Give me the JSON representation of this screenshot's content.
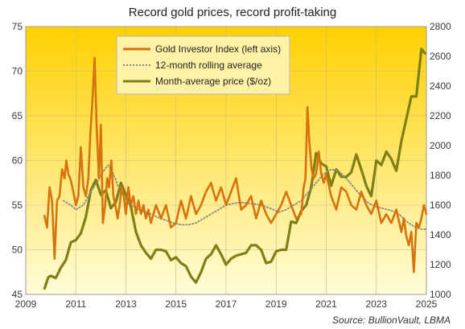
{
  "chart_data": {
    "type": "line",
    "title": "Record gold prices, record profit-taking",
    "source": "Source: BullionVault, LBMA",
    "x_range": [
      2009,
      2025
    ],
    "x_ticks": [
      "2009",
      "2011",
      "2013",
      "2015",
      "2017",
      "2019",
      "2021",
      "2023",
      "2025"
    ],
    "y_left": {
      "range": [
        45,
        75
      ],
      "ticks": [
        "45",
        "50",
        "55",
        "60",
        "65",
        "70",
        "75"
      ]
    },
    "y_right": {
      "range": [
        1000,
        2800
      ],
      "ticks": [
        "1000",
        "1200",
        "1400",
        "1600",
        "1800",
        "2000",
        "2200",
        "2400",
        "2600",
        "2800"
      ]
    },
    "grid": true,
    "legend_placement": "top-center",
    "colors": {
      "bg_top": "#ffd000",
      "bg_bottom": "#fffcd8",
      "gii": "#d6730f",
      "avg": "#8a8a8a",
      "price": "#7f7f16",
      "legend_bg": "#fff2a6"
    },
    "series": [
      {
        "name": "Gold Investor Index (left axis)",
        "axis": "left",
        "style": "solid",
        "x": [
          2009.75,
          2009.85,
          2009.95,
          2010.05,
          2010.15,
          2010.25,
          2010.35,
          2010.45,
          2010.55,
          2010.62,
          2010.7,
          2010.8,
          2010.9,
          2011.0,
          2011.1,
          2011.2,
          2011.3,
          2011.4,
          2011.5,
          2011.58,
          2011.67,
          2011.75,
          2011.83,
          2011.92,
          2012.0,
          2012.08,
          2012.17,
          2012.25,
          2012.33,
          2012.42,
          2012.5,
          2012.58,
          2012.67,
          2012.75,
          2012.83,
          2012.92,
          2013.0,
          2013.1,
          2013.2,
          2013.3,
          2013.4,
          2013.5,
          2013.6,
          2013.7,
          2013.8,
          2013.9,
          2014.0,
          2014.2,
          2014.4,
          2014.6,
          2014.8,
          2015.0,
          2015.2,
          2015.4,
          2015.6,
          2015.8,
          2016.0,
          2016.2,
          2016.4,
          2016.6,
          2016.8,
          2017.0,
          2017.2,
          2017.4,
          2017.6,
          2017.8,
          2018.0,
          2018.2,
          2018.4,
          2018.6,
          2018.8,
          2019.0,
          2019.2,
          2019.4,
          2019.6,
          2019.8,
          2020.0,
          2020.1,
          2020.17,
          2020.25,
          2020.33,
          2020.42,
          2020.5,
          2020.6,
          2020.7,
          2020.8,
          2020.9,
          2021.0,
          2021.2,
          2021.4,
          2021.6,
          2021.8,
          2022.0,
          2022.2,
          2022.4,
          2022.6,
          2022.8,
          2023.0,
          2023.2,
          2023.4,
          2023.6,
          2023.8,
          2024.0,
          2024.1,
          2024.2,
          2024.3,
          2024.4,
          2024.5,
          2024.6,
          2024.7,
          2024.8,
          2024.9,
          2025.0
        ],
        "values": [
          53.8,
          52.5,
          57.0,
          55.5,
          49.0,
          55.5,
          56.0,
          59.0,
          58.0,
          60.0,
          58.5,
          57.8,
          56.5,
          55.0,
          56.0,
          61.5,
          57.0,
          56.0,
          58.0,
          63.0,
          67.0,
          71.5,
          64.0,
          58.0,
          64.0,
          53.0,
          55.0,
          58.0,
          57.0,
          60.0,
          56.0,
          55.0,
          53.5,
          55.0,
          57.0,
          56.0,
          54.0,
          57.0,
          55.0,
          56.0,
          54.0,
          55.5,
          54.0,
          55.0,
          53.5,
          54.5,
          53.0,
          55.0,
          53.5,
          55.0,
          52.5,
          53.0,
          55.5,
          53.5,
          56.0,
          54.0,
          55.0,
          56.5,
          57.5,
          55.5,
          57.0,
          55.0,
          56.5,
          58.0,
          54.5,
          55.0,
          56.0,
          53.5,
          55.5,
          54.0,
          53.0,
          54.0,
          55.0,
          56.5,
          55.0,
          53.5,
          54.0,
          57.0,
          58.0,
          66.0,
          62.0,
          59.0,
          58.0,
          58.5,
          61.0,
          58.5,
          57.5,
          58.5,
          56.0,
          54.5,
          57.0,
          56.5,
          55.0,
          54.5,
          56.5,
          55.0,
          54.0,
          55.5,
          53.0,
          54.0,
          53.0,
          54.5,
          52.0,
          53.5,
          51.5,
          50.5,
          52.0,
          47.5,
          53.0,
          52.5,
          53.5,
          55.0,
          54.0
        ]
      },
      {
        "name": "12-month rolling average",
        "axis": "left",
        "style": "dotted",
        "x": [
          2010.5,
          2010.8,
          2011.0,
          2011.3,
          2011.6,
          2011.9,
          2012.1,
          2012.3,
          2012.5,
          2012.7,
          2012.9,
          2013.2,
          2013.5,
          2013.8,
          2014.0,
          2014.3,
          2014.6,
          2014.9,
          2015.2,
          2015.5,
          2015.8,
          2016.1,
          2016.4,
          2016.7,
          2017.0,
          2017.3,
          2017.6,
          2017.9,
          2018.2,
          2018.5,
          2018.8,
          2019.1,
          2019.4,
          2019.7,
          2020.0,
          2020.3,
          2020.6,
          2020.9,
          2021.2,
          2021.5,
          2021.8,
          2022.1,
          2022.4,
          2022.7,
          2023.0,
          2023.3,
          2023.6,
          2023.9,
          2024.2,
          2024.5,
          2024.8,
          2025.0
        ],
        "values": [
          55.5,
          55.0,
          54.5,
          55.0,
          56.5,
          57.8,
          58.8,
          59.5,
          58.5,
          57.0,
          56.0,
          55.0,
          54.5,
          54.2,
          54.0,
          53.6,
          53.3,
          53.0,
          52.8,
          52.8,
          53.0,
          53.5,
          54.0,
          54.5,
          55.0,
          55.2,
          55.3,
          55.2,
          55.1,
          54.9,
          54.6,
          54.2,
          54.5,
          55.0,
          55.5,
          56.5,
          57.5,
          58.5,
          59.0,
          58.8,
          58.0,
          57.0,
          56.0,
          55.2,
          54.8,
          54.6,
          54.4,
          54.0,
          53.2,
          52.6,
          52.3,
          52.3
        ]
      },
      {
        "name": "Month-average price ($/oz)",
        "axis": "right",
        "style": "solid",
        "x": [
          2009.75,
          2009.9,
          2010.0,
          2010.2,
          2010.4,
          2010.6,
          2010.8,
          2011.0,
          2011.2,
          2011.4,
          2011.6,
          2011.8,
          2012.0,
          2012.2,
          2012.4,
          2012.6,
          2012.8,
          2013.0,
          2013.2,
          2013.4,
          2013.6,
          2013.8,
          2014.0,
          2014.2,
          2014.4,
          2014.6,
          2014.8,
          2015.0,
          2015.2,
          2015.4,
          2015.6,
          2015.8,
          2016.0,
          2016.2,
          2016.4,
          2016.6,
          2016.8,
          2017.0,
          2017.2,
          2017.4,
          2017.6,
          2017.8,
          2018.0,
          2018.2,
          2018.4,
          2018.6,
          2018.8,
          2019.0,
          2019.2,
          2019.4,
          2019.6,
          2019.8,
          2020.0,
          2020.2,
          2020.4,
          2020.6,
          2020.8,
          2021.0,
          2021.2,
          2021.4,
          2021.6,
          2021.8,
          2022.0,
          2022.2,
          2022.4,
          2022.6,
          2022.8,
          2023.0,
          2023.2,
          2023.4,
          2023.6,
          2023.8,
          2024.0,
          2024.2,
          2024.4,
          2024.6,
          2024.8,
          2024.95
        ],
        "values": [
          1040,
          1115,
          1125,
          1110,
          1180,
          1230,
          1350,
          1365,
          1410,
          1520,
          1700,
          1770,
          1670,
          1700,
          1580,
          1620,
          1750,
          1670,
          1590,
          1420,
          1330,
          1280,
          1240,
          1300,
          1300,
          1290,
          1230,
          1250,
          1210,
          1190,
          1120,
          1080,
          1150,
          1240,
          1270,
          1330,
          1270,
          1200,
          1240,
          1260,
          1270,
          1280,
          1330,
          1330,
          1300,
          1210,
          1220,
          1290,
          1300,
          1300,
          1490,
          1480,
          1560,
          1600,
          1720,
          1950,
          1880,
          1860,
          1730,
          1840,
          1790,
          1790,
          1820,
          1940,
          1840,
          1730,
          1660,
          1900,
          1870,
          1960,
          1910,
          1830,
          2030,
          2180,
          2330,
          2330,
          2650,
          2620
        ]
      }
    ]
  }
}
